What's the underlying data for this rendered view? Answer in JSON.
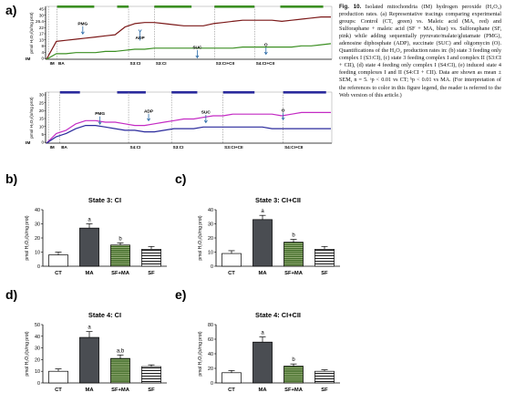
{
  "caption": {
    "label": "Fig. 10.",
    "text": "Isolated mitochondria (IM) hydrogen peroxide (H₂O₂) production rates. (a) Representative tracings comparing experimental groups: Control (CT, green) vs. Maleic acid (MA, red) and Sulforaphane + maleic acid (SF + MA, blue) vs. Sulforaphane (SF, pink) while adding sequentially pyruvate/malate/glutamate (PMG), adenosine diphosphate (ADP), succinate (SUC) and oligomycin (O). Quantifications of the H₂O₂ production rates in: (b) state 3 feeding only complex I (S3:CI), (c) state 3 feeding complex I and complex II (S3:CI + CII), (d) state 4 feeding only complex I (S4:CI), (e) induced state 4 feeding complexes I and II (S4:CI + CII). Data are shown as mean ± SEM, n = 5. ᵃp < 0.01 vs CT; ᵇp < 0.01 vs MA. (For interpretation of the references to color in this figure legend, the reader is referred to the Web version of this article.)"
  },
  "colors": {
    "green": "#3b8f22",
    "red": "#7b1818",
    "blue": "#2a2a9c",
    "pink": "#c42bc4",
    "dark_bar": "#4a4d52"
  },
  "chart_data": [
    {
      "panel": "a",
      "type": "line",
      "part": "top",
      "ylabel": "pmol H₂O₂/(s/mg prot)",
      "yticks": [
        "45",
        "30",
        "26.4",
        "22",
        "17",
        "13",
        "8",
        "4",
        "0"
      ],
      "markers": [
        "IM",
        "BA",
        "S3:CI",
        "S3:CI",
        "S3:CI+CII",
        "S4:CI+CII"
      ],
      "annotations": [
        "PMG",
        "ADP",
        "SUC",
        "O"
      ],
      "series": [
        {
          "color": "red",
          "values": [
            0,
            16,
            17,
            18,
            19,
            20,
            21,
            22,
            29,
            32,
            33,
            33,
            32,
            31,
            30,
            30,
            30,
            32,
            33,
            34,
            35,
            35,
            35,
            35,
            34,
            35,
            36,
            37,
            38,
            38
          ]
        },
        {
          "color": "green",
          "values": [
            0,
            5,
            5,
            6,
            6,
            6,
            7,
            7,
            8,
            9,
            9,
            10,
            10,
            10,
            10,
            10,
            10,
            10,
            10,
            10,
            11,
            11,
            11,
            11,
            11,
            11,
            12,
            12,
            13,
            14
          ]
        }
      ]
    },
    {
      "panel": "a",
      "type": "line",
      "part": "bottom",
      "ylabel": "pmol H₂O₂/(s/mg prot)",
      "yticks": [
        "30",
        "25",
        "20",
        "15",
        "10",
        "5",
        "0"
      ],
      "markers": [
        "IM",
        "BA",
        "S4:CI",
        "S3:CI",
        "S3:CI+CII",
        "S4:CI+CII"
      ],
      "annotations": [
        "PMG",
        "ADP",
        "SUC",
        "O"
      ],
      "series": [
        {
          "color": "pink",
          "values": [
            0,
            6,
            8,
            12,
            14,
            14,
            13,
            13,
            12,
            11,
            11,
            12,
            13,
            14,
            15,
            15,
            16,
            17,
            17,
            18,
            18,
            18,
            18,
            18,
            17,
            18,
            19,
            19,
            19,
            19
          ]
        },
        {
          "color": "blue",
          "values": [
            0,
            4,
            6,
            9,
            11,
            11,
            10,
            9,
            8,
            8,
            7,
            7,
            8,
            9,
            9,
            9,
            10,
            10,
            10,
            10,
            10,
            10,
            10,
            9,
            9,
            9,
            9,
            9,
            9,
            9
          ]
        }
      ]
    },
    {
      "panel": "b",
      "type": "bar",
      "title": "State 3: CI",
      "ylabel": "pmol H₂O₂/(s/mg prot)",
      "ylim": [
        0,
        40
      ],
      "yticks": [
        "0",
        "10",
        "20",
        "30",
        "40"
      ],
      "categories": [
        "CT",
        "MA",
        "SF+MA",
        "SF"
      ],
      "values": [
        8,
        27,
        15,
        12
      ],
      "errors": [
        2,
        3,
        1.5,
        2
      ],
      "sig": [
        "",
        "a",
        "b",
        ""
      ]
    },
    {
      "panel": "c",
      "type": "bar",
      "title": "State 3: CI+CII",
      "ylabel": "pmol H₂O₂/(s/mg prot)",
      "ylim": [
        0,
        40
      ],
      "yticks": [
        "0",
        "10",
        "20",
        "30",
        "40"
      ],
      "categories": [
        "CT",
        "MA",
        "SF+MA",
        "SF"
      ],
      "values": [
        9,
        33,
        17,
        12
      ],
      "errors": [
        2,
        3,
        2,
        2
      ],
      "sig": [
        "",
        "a",
        "b",
        ""
      ]
    },
    {
      "panel": "d",
      "type": "bar",
      "title": "State 4: CI",
      "ylabel": "pmol H₂O₂/(s/mg prot)",
      "ylim": [
        0,
        50
      ],
      "yticks": [
        "0",
        "10",
        "20",
        "30",
        "40",
        "50"
      ],
      "categories": [
        "CT",
        "MA",
        "SF+MA",
        "SF"
      ],
      "values": [
        10,
        39,
        21,
        14
      ],
      "errors": [
        2,
        5,
        3,
        1.5
      ],
      "sig": [
        "",
        "a",
        "a,b",
        ""
      ]
    },
    {
      "panel": "e",
      "type": "bar",
      "title": "State 4: CI+CII",
      "ylabel": "pmol H₂O₂/(s/mg prot)",
      "ylim": [
        0,
        80
      ],
      "yticks": [
        "0",
        "20",
        "40",
        "60",
        "80"
      ],
      "categories": [
        "CT",
        "MA",
        "SF+MA",
        "SF"
      ],
      "values": [
        14,
        56,
        23,
        16
      ],
      "errors": [
        3,
        7,
        3,
        2
      ],
      "sig": [
        "",
        "a",
        "b",
        ""
      ]
    }
  ]
}
